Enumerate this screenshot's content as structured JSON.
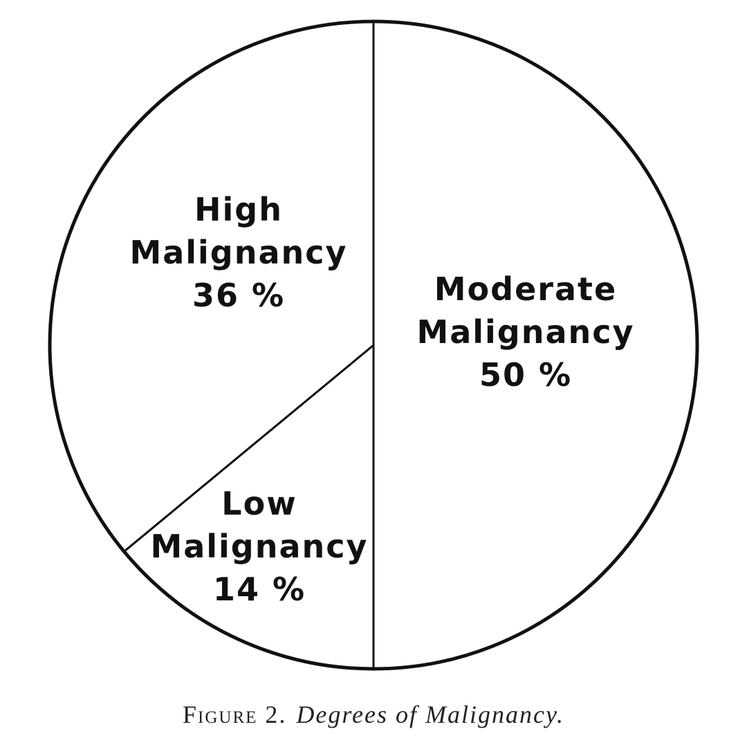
{
  "chart_data": {
    "type": "pie",
    "figure": "Figure 2.",
    "title": "Degrees of Malignancy.",
    "categories": [
      "Moderate Malignancy",
      "Low Malignancy",
      "High Malignancy"
    ],
    "values": [
      50,
      14,
      36
    ],
    "value_labels": [
      "50 %",
      "14 %",
      "36 %"
    ],
    "color": "#ffffff"
  }
}
